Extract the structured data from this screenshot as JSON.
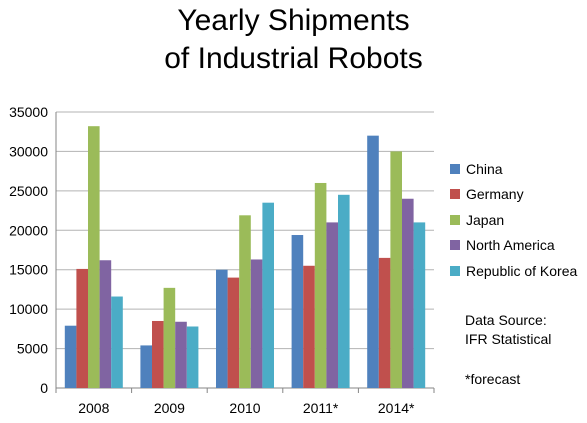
{
  "chart_data": {
    "type": "bar",
    "title_lines": [
      "Yearly Shipments",
      "of Industrial Robots"
    ],
    "categories": [
      "2008",
      "2009",
      "2010",
      "2011*",
      "2014*"
    ],
    "series": [
      {
        "name": "China",
        "color": "#4F81BD",
        "values": [
          7900,
          5400,
          15000,
          19400,
          32000
        ]
      },
      {
        "name": "Germany",
        "color": "#C0504D",
        "values": [
          15100,
          8500,
          14000,
          15500,
          16500
        ]
      },
      {
        "name": "Japan",
        "color": "#9BBB59",
        "values": [
          33200,
          12700,
          21900,
          26000,
          30000
        ]
      },
      {
        "name": "North America",
        "color": "#8064A2",
        "values": [
          16200,
          8400,
          16300,
          21000,
          24000
        ]
      },
      {
        "name": "Republic of Korea",
        "color": "#4BACC6",
        "values": [
          11600,
          7800,
          23500,
          24500,
          21000
        ]
      }
    ],
    "ylim": [
      0,
      35000
    ],
    "yticks": [
      0,
      5000,
      10000,
      15000,
      20000,
      25000,
      30000,
      35000
    ],
    "grid": true,
    "legend_position": "right"
  },
  "notes": {
    "source_lines": [
      "Data Source:",
      "IFR Statistical"
    ],
    "forecast": "*forecast"
  }
}
